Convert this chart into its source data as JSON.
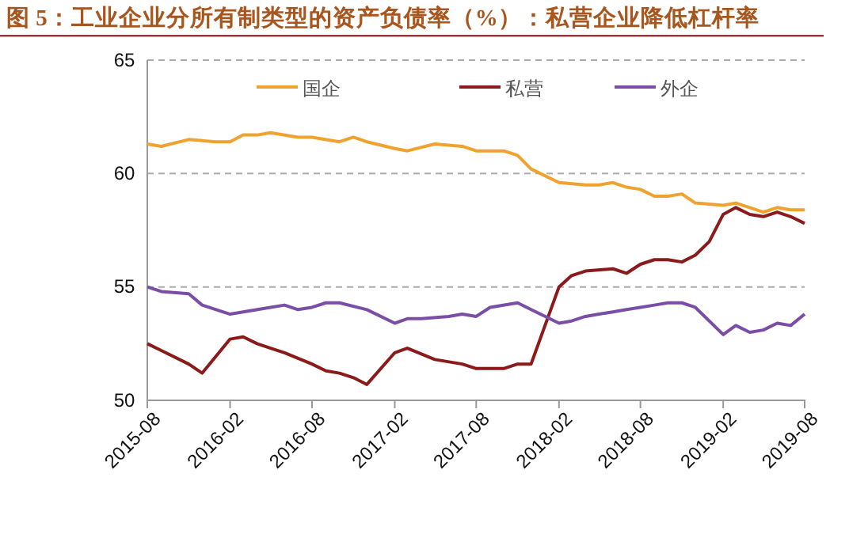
{
  "chart_data": {
    "type": "line",
    "title": "图 5：工业企业分所有制类型的资产负债率（%）：私营企业降低杠杆率",
    "xlim": [
      "2015-08",
      "2019-08"
    ],
    "xticks": [
      "2015-08",
      "2016-02",
      "2016-08",
      "2017-02",
      "2017-08",
      "2018-02",
      "2018-08",
      "2019-02",
      "2019-08"
    ],
    "ylim": [
      50,
      65
    ],
    "yticks": [
      50,
      55,
      60,
      65
    ],
    "grid": "y",
    "legend": "top",
    "line_style": "solid",
    "marker": "none",
    "series": [
      {
        "name": "国企",
        "color": "#f0a22e",
        "x": [
          "2015-08",
          "2015-09",
          "2015-11",
          "2016-01",
          "2016-02",
          "2016-03",
          "2016-04",
          "2016-05",
          "2016-07",
          "2016-08",
          "2016-10",
          "2016-11",
          "2016-12",
          "2017-02",
          "2017-03",
          "2017-05",
          "2017-07",
          "2017-08",
          "2017-10",
          "2017-11",
          "2017-12",
          "2018-02",
          "2018-04",
          "2018-05",
          "2018-06",
          "2018-07",
          "2018-08",
          "2018-09",
          "2018-10",
          "2018-11",
          "2018-12",
          "2019-02",
          "2019-03",
          "2019-04",
          "2019-05",
          "2019-06",
          "2019-07",
          "2019-08"
        ],
        "values": [
          61.3,
          61.2,
          61.5,
          61.4,
          61.4,
          61.7,
          61.7,
          61.8,
          61.6,
          61.6,
          61.4,
          61.6,
          61.4,
          61.1,
          61.0,
          61.3,
          61.2,
          61.0,
          61.0,
          60.8,
          60.2,
          59.6,
          59.5,
          59.5,
          59.6,
          59.4,
          59.3,
          59.0,
          59.0,
          59.1,
          58.7,
          58.6,
          58.7,
          58.5,
          58.3,
          58.5,
          58.4,
          58.4
        ]
      },
      {
        "name": "私营",
        "color": "#8b1a1a",
        "x": [
          "2015-08",
          "2015-09",
          "2015-11",
          "2015-12",
          "2016-02",
          "2016-03",
          "2016-04",
          "2016-05",
          "2016-06",
          "2016-08",
          "2016-09",
          "2016-10",
          "2016-11",
          "2016-12",
          "2017-02",
          "2017-03",
          "2017-05",
          "2017-07",
          "2017-08",
          "2017-10",
          "2017-11",
          "2017-12",
          "2018-02",
          "2018-03",
          "2018-04",
          "2018-06",
          "2018-07",
          "2018-08",
          "2018-09",
          "2018-10",
          "2018-11",
          "2018-12",
          "2019-01",
          "2019-02",
          "2019-03",
          "2019-04",
          "2019-05",
          "2019-06",
          "2019-07",
          "2019-08"
        ],
        "values": [
          52.5,
          52.2,
          51.6,
          51.2,
          52.7,
          52.8,
          52.5,
          52.3,
          52.1,
          51.6,
          51.3,
          51.2,
          51.0,
          50.7,
          52.1,
          52.3,
          51.8,
          51.6,
          51.4,
          51.4,
          51.6,
          51.6,
          55.0,
          55.5,
          55.7,
          55.8,
          55.6,
          56.0,
          56.2,
          56.2,
          56.1,
          56.4,
          57.0,
          58.2,
          58.5,
          58.2,
          58.1,
          58.3,
          58.1,
          57.8
        ]
      },
      {
        "name": "外企",
        "color": "#7a4ea6",
        "x": [
          "2015-08",
          "2015-09",
          "2015-11",
          "2015-12",
          "2016-02",
          "2016-03",
          "2016-05",
          "2016-06",
          "2016-07",
          "2016-08",
          "2016-09",
          "2016-10",
          "2016-12",
          "2017-02",
          "2017-03",
          "2017-04",
          "2017-06",
          "2017-07",
          "2017-08",
          "2017-09",
          "2017-11",
          "2017-12",
          "2018-02",
          "2018-03",
          "2018-04",
          "2018-05",
          "2018-06",
          "2018-07",
          "2018-08",
          "2018-09",
          "2018-10",
          "2018-11",
          "2018-12",
          "2019-02",
          "2019-03",
          "2019-04",
          "2019-05",
          "2019-06",
          "2019-07",
          "2019-08"
        ],
        "values": [
          55.0,
          54.8,
          54.7,
          54.2,
          53.8,
          53.9,
          54.1,
          54.2,
          54.0,
          54.1,
          54.3,
          54.3,
          54.0,
          53.4,
          53.6,
          53.6,
          53.7,
          53.8,
          53.7,
          54.1,
          54.3,
          54.0,
          53.4,
          53.5,
          53.7,
          53.8,
          53.9,
          54.0,
          54.1,
          54.2,
          54.3,
          54.3,
          54.1,
          52.9,
          53.3,
          53.0,
          53.1,
          53.4,
          53.3,
          53.8
        ]
      }
    ]
  }
}
